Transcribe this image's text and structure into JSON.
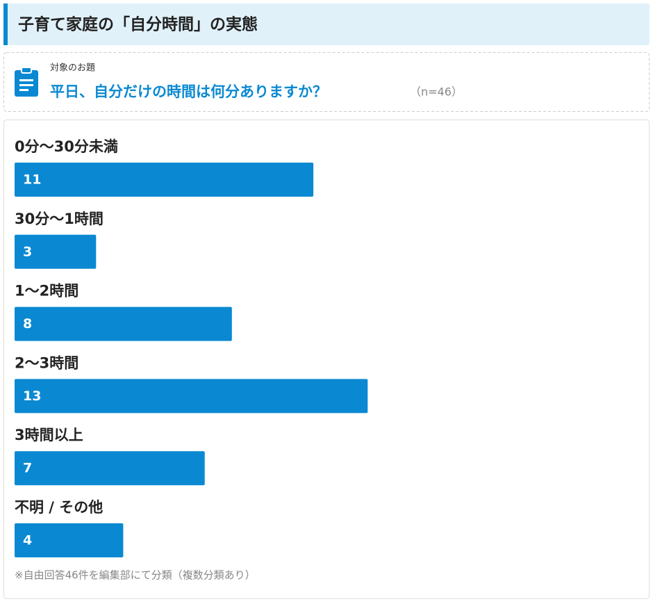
{
  "header": {
    "title": "子育て家庭の「自分時間」の実態"
  },
  "topic": {
    "label": "対象のお題",
    "question": "平日、自分だけの時間は何分ありますか？",
    "sample": "（n=46）"
  },
  "chart_data": {
    "type": "bar",
    "orientation": "horizontal",
    "categories": [
      "0分〜30分未満",
      "30分〜1時間",
      "1〜2時間",
      "2〜3時間",
      "3時間以上",
      "不明 / その他"
    ],
    "values": [
      11,
      3,
      8,
      13,
      7,
      4
    ],
    "color": "#0a89d2"
  },
  "note": "※自由回答46件を編集部にて分類（複数分類あり）"
}
